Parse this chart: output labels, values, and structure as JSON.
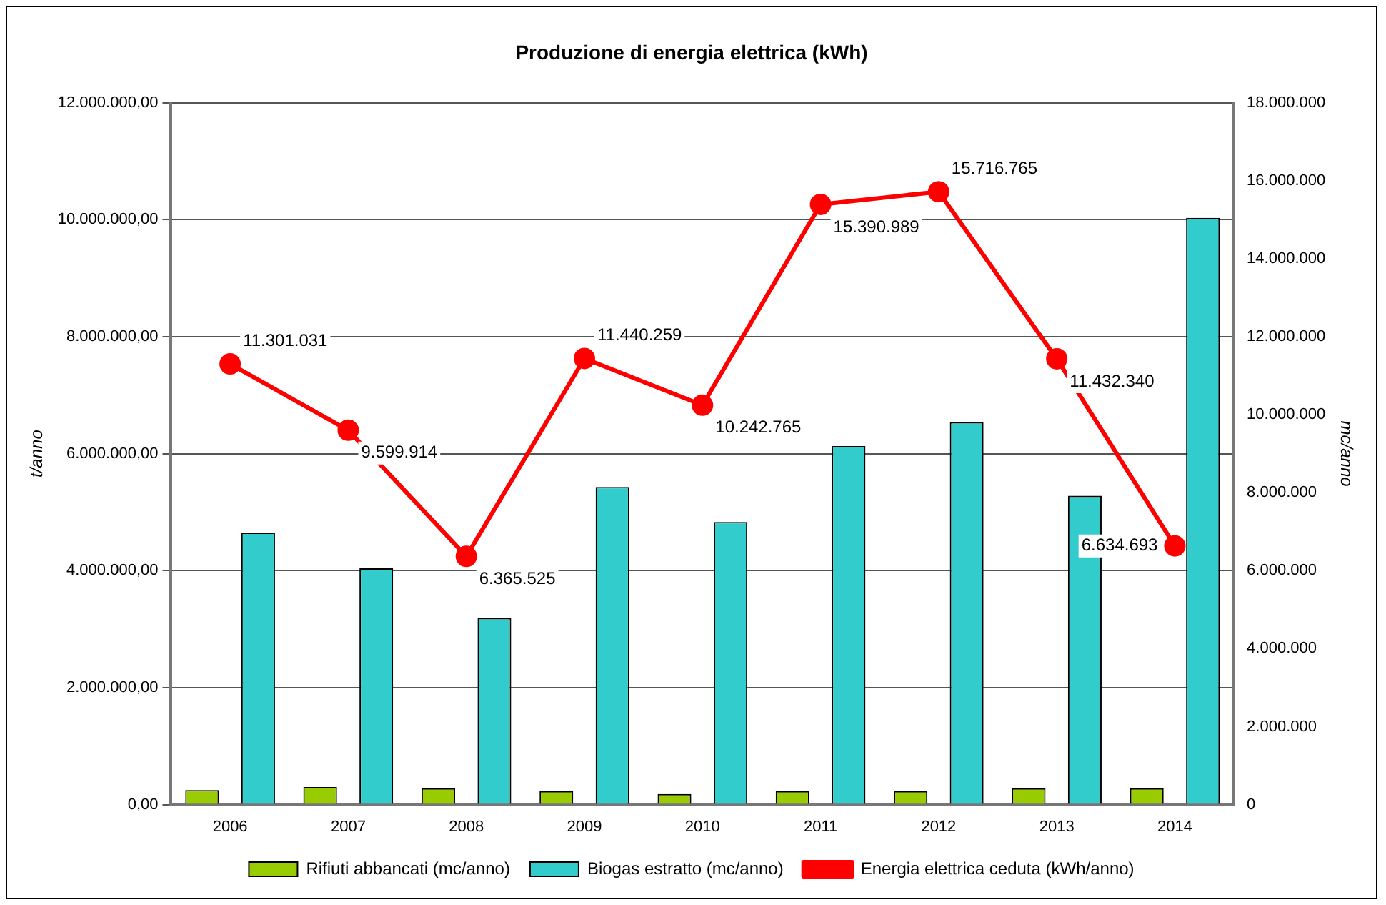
{
  "chart_data": {
    "type": "bar",
    "title": "Produzione di energia elettrica (kWh)",
    "ylabel": "t/anno",
    "y2label": "mc/anno",
    "categories": [
      "2006",
      "2007",
      "2008",
      "2009",
      "2010",
      "2011",
      "2012",
      "2013",
      "2014"
    ],
    "series": [
      {
        "name": "Rifiuti abbancati (mc/anno)",
        "color": "#99cc00",
        "values": [
          250000.0,
          300000.0,
          280000.0,
          230000.0,
          180000.0,
          230000.0,
          230000.0,
          280000.0,
          280000.0
        ]
      },
      {
        "name": "Biogas estratto (mc/anno)",
        "color": "#33cccc",
        "values": [
          4650000.0,
          4040000.0,
          3190000.0,
          5430000.0,
          4830000.0,
          6130000.0,
          6540000.0,
          5280000.0,
          10030000.0
        ]
      },
      {
        "name": "Energia elettrica ceduta (kWh/anno)",
        "type": "line",
        "axis": "y2",
        "color": "#ff0000",
        "marker": "circle",
        "value_labels": [
          "11.301.031",
          "9.599.914",
          "6.365.525",
          "11.440.259",
          "10.242.765",
          "15.390.989",
          "15.716.765",
          "11.432.340",
          "6.634.693"
        ],
        "values": [
          11301031,
          9599914,
          6365525,
          11440259,
          10242765,
          15390989,
          15716765,
          11432340,
          6634693
        ]
      }
    ],
    "ylim": [
      0,
      12000000
    ],
    "yticks": [
      {
        "value": 0,
        "label": "0,00"
      },
      {
        "value": 2000000,
        "label": "2.000.000,00"
      },
      {
        "value": 4000000,
        "label": "4.000.000,00"
      },
      {
        "value": 6000000,
        "label": "6.000.000,00"
      },
      {
        "value": 8000000,
        "label": "8.000.000,00"
      },
      {
        "value": 10000000,
        "label": "10.000.000,00"
      },
      {
        "value": 12000000,
        "label": "12.000.000,00"
      }
    ],
    "y2lim": [
      0,
      18000000
    ],
    "y2ticks": [
      0,
      {
        "value": 2000000,
        "label": "2.000.000"
      },
      {
        "value": 4000000,
        "label": "4.000.000"
      },
      {
        "value": 6000000,
        "label": "6.000.000"
      },
      {
        "value": 8000000,
        "label": "8.000.000"
      },
      {
        "value": 10000000,
        "label": "10.000.000"
      },
      {
        "value": 12000000,
        "label": "12.000.000"
      },
      {
        "value": 14000000,
        "label": "14.000.000"
      },
      {
        "value": 16000000,
        "label": "16.000.000"
      },
      {
        "value": 18000000,
        "label": "18.000.000"
      }
    ],
    "grid": "y",
    "legend": "bottom"
  }
}
